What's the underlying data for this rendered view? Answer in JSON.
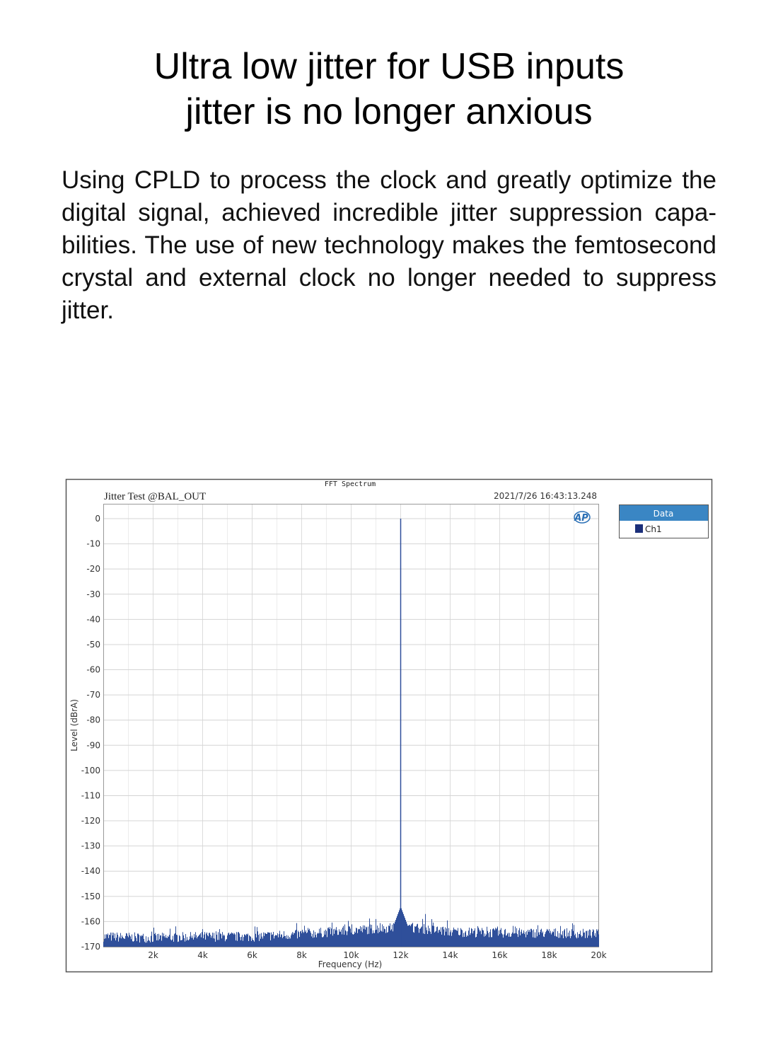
{
  "heading": {
    "line1": "Ultra low jitter for USB inputs",
    "line2": "jitter is no longer anxious"
  },
  "description": "Using CPLD to process the clock and greatly optimize the digital signal, achieved incredible jitter suppression capa­bilities. The use of new technology makes the femtosec­ond crystal and external clock no longer needed to sup­press jitter.",
  "chart_data": {
    "type": "line",
    "title": "FFT Spectrum",
    "subtitle": "Jitter Test @BAL_OUT",
    "timestamp": "2021/7/26 16:43:13.248",
    "logo": "AP",
    "xlabel": "Frequency (Hz)",
    "ylabel": "Level (dBrA)",
    "xlim": [
      0,
      20000
    ],
    "ylim": [
      -170,
      0
    ],
    "x_ticks": [
      2000,
      4000,
      6000,
      8000,
      10000,
      12000,
      14000,
      16000,
      18000,
      20000
    ],
    "x_tick_labels": [
      "2k",
      "4k",
      "6k",
      "8k",
      "10k",
      "12k",
      "14k",
      "16k",
      "18k",
      "20k"
    ],
    "y_ticks": [
      0,
      -10,
      -20,
      -30,
      -40,
      -50,
      -60,
      -70,
      -80,
      -90,
      -100,
      -110,
      -120,
      -130,
      -140,
      -150,
      -160,
      -170
    ],
    "grid": true,
    "legend": {
      "title": "Data",
      "placement": "right",
      "entries": [
        "Ch1"
      ]
    },
    "series": [
      {
        "name": "Ch1",
        "color": "#2f4f9a",
        "peak": {
          "x": 12000,
          "y": 0
        },
        "noise_floor": {
          "x": [
            0,
            2000,
            4000,
            6000,
            8000,
            10000,
            11500,
            12500,
            14000,
            16000,
            18000,
            20000
          ],
          "y": [
            -166,
            -166.5,
            -166,
            -166,
            -165,
            -163.5,
            -162.5,
            -162.5,
            -164,
            -164.5,
            -164.5,
            -165
          ]
        },
        "spurs": [
          {
            "x": 11000,
            "y": -159
          },
          {
            "x": 13000,
            "y": -157
          },
          {
            "x": 4000,
            "y": -163
          }
        ]
      }
    ]
  }
}
